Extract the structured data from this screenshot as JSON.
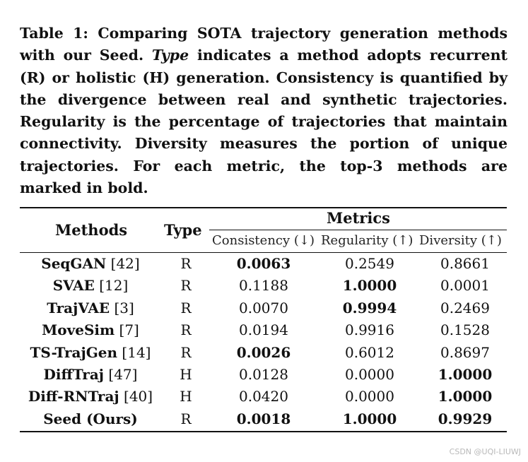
{
  "caption": {
    "pre": "Table 1: Comparing SOTA trajectory generation methods with our Seed. ",
    "type_word": "Type",
    "post": " indicates a method adopts recurrent (R) or holistic (H) generation. Consistency is quantified by the divergence between real and synthetic trajectories. Regularity is the percentage of trajectories that maintain connectivity. Diversity measures the portion of unique trajectories. For each metric, the top-3 methods are marked in bold."
  },
  "table": {
    "header": {
      "methods": "Methods",
      "type": "Type",
      "metrics": "Metrics",
      "consistency": "Consistency (↓)",
      "regularity": "Regularity (↑)",
      "diversity": "Diversity (↑)"
    },
    "rows": [
      {
        "name": "SeqGAN",
        "ref": " [42]",
        "type": "R",
        "consistency": "0.0063",
        "regularity": "0.2549",
        "diversity": "0.8661",
        "bold": [
          true,
          false,
          false
        ]
      },
      {
        "name": "SVAE",
        "ref": " [12]",
        "type": "R",
        "consistency": "0.1188",
        "regularity": "1.0000",
        "diversity": "0.0001",
        "bold": [
          false,
          true,
          false
        ]
      },
      {
        "name": "TrajVAE",
        "ref": " [3]",
        "type": "R",
        "consistency": "0.0070",
        "regularity": "0.9994",
        "diversity": "0.2469",
        "bold": [
          false,
          true,
          false
        ]
      },
      {
        "name": "MoveSim",
        "ref": " [7]",
        "type": "R",
        "consistency": "0.0194",
        "regularity": "0.9916",
        "diversity": "0.1528",
        "bold": [
          false,
          false,
          false
        ]
      },
      {
        "name": "TS-TrajGen",
        "ref": " [14]",
        "type": "R",
        "consistency": "0.0026",
        "regularity": "0.6012",
        "diversity": "0.8697",
        "bold": [
          true,
          false,
          false
        ]
      },
      {
        "name": "DiffTraj",
        "ref": " [47]",
        "type": "H",
        "consistency": "0.0128",
        "regularity": "0.0000",
        "diversity": "1.0000",
        "bold": [
          false,
          false,
          true
        ]
      },
      {
        "name": "Diff-RNTraj",
        "ref": " [40]",
        "type": "H",
        "consistency": "0.0420",
        "regularity": "0.0000",
        "diversity": "1.0000",
        "bold": [
          false,
          false,
          true
        ]
      },
      {
        "name": "Seed (Ours)",
        "ref": "",
        "type": "R",
        "consistency": "0.0018",
        "regularity": "1.0000",
        "diversity": "0.9929",
        "bold": [
          true,
          true,
          true
        ]
      }
    ]
  },
  "watermark": "CSDN @UQI-LIUWJ"
}
